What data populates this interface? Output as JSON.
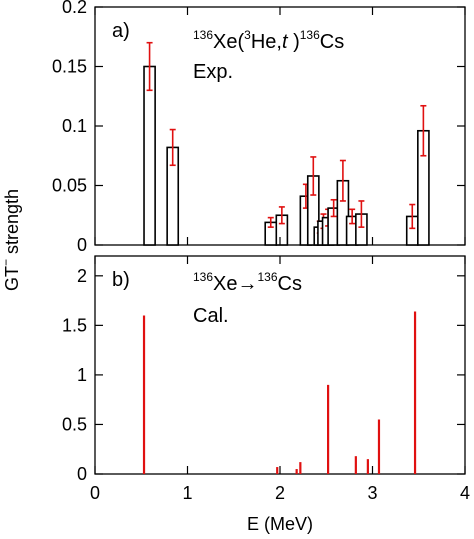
{
  "chart_data": [
    {
      "panel": "a)",
      "type": "bar",
      "label_line1": {
        "m1": "136",
        "t1": "Xe(",
        "m2": "3",
        "t2": "He,",
        "t3": "t",
        "t4": " )",
        "m3": "136",
        "t5": "Cs"
      },
      "label_line2": "Exp.",
      "xlim": [
        0,
        4
      ],
      "ylim": [
        0,
        0.2
      ],
      "yticks": [
        "0",
        "0.05",
        "0.1",
        "0.15",
        "0.2"
      ],
      "bars": [
        {
          "x": 0.59,
          "value": 0.15,
          "err": 0.02
        },
        {
          "x": 0.84,
          "value": 0.082,
          "err": 0.015
        },
        {
          "x": 1.9,
          "value": 0.019,
          "err": 0.004
        },
        {
          "x": 2.02,
          "value": 0.025,
          "err": 0.007
        },
        {
          "x": 2.28,
          "value": 0.041,
          "err": 0.01
        },
        {
          "x": 2.36,
          "value": 0.058,
          "err": 0.016
        },
        {
          "x": 2.43,
          "value": 0.015,
          "err": 0.005
        },
        {
          "x": 2.47,
          "value": 0.02,
          "err": 0.006
        },
        {
          "x": 2.52,
          "value": 0.023,
          "err": 0.007
        },
        {
          "x": 2.58,
          "value": 0.031,
          "err": 0.007
        },
        {
          "x": 2.68,
          "value": 0.054,
          "err": 0.017
        },
        {
          "x": 2.78,
          "value": 0.024,
          "err": 0.006
        },
        {
          "x": 2.88,
          "value": 0.026,
          "err": 0.011
        },
        {
          "x": 3.43,
          "value": 0.024,
          "err": 0.01
        },
        {
          "x": 3.55,
          "value": 0.096,
          "err": 0.021
        }
      ],
      "bar_width_mev": 0.12,
      "errorbar_color": "#e01010"
    },
    {
      "panel": "b)",
      "type": "bar",
      "label_line1": {
        "m1": "136",
        "t1": "Xe→",
        "m3": "136",
        "t5": "Cs"
      },
      "label_line2": "Cal.",
      "xlim": [
        0,
        4
      ],
      "ylim": [
        0,
        2.2
      ],
      "yticks": [
        "0",
        "0.5",
        "1",
        "1.5",
        "2"
      ],
      "lines": [
        {
          "x": 0.53,
          "value": 1.6
        },
        {
          "x": 1.97,
          "value": 0.07
        },
        {
          "x": 2.18,
          "value": 0.05
        },
        {
          "x": 2.22,
          "value": 0.12
        },
        {
          "x": 2.52,
          "value": 0.9
        },
        {
          "x": 2.82,
          "value": 0.18
        },
        {
          "x": 2.95,
          "value": 0.15
        },
        {
          "x": 3.07,
          "value": 0.55
        },
        {
          "x": 3.46,
          "value": 1.64
        }
      ],
      "line_color": "#e01010"
    }
  ],
  "shared": {
    "xticks": [
      "0",
      "1",
      "2",
      "3",
      "4"
    ],
    "xlabel": "E (MeV)",
    "ylabel_main": "GT",
    "ylabel_sup": "−",
    "ylabel_rest": " strength"
  }
}
